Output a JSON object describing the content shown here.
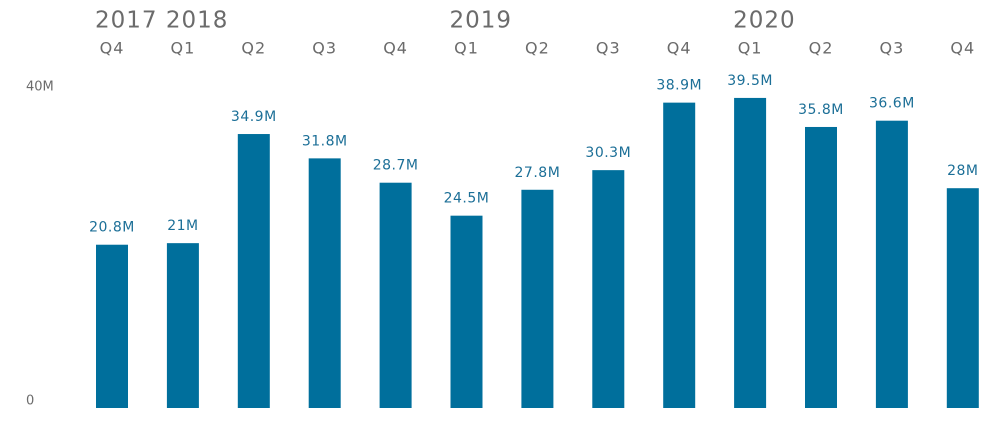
{
  "chart_data": {
    "type": "bar",
    "years": [
      "2017",
      "2018",
      null,
      null,
      null,
      "2019",
      null,
      null,
      null,
      "2020",
      null,
      null,
      null
    ],
    "categories": [
      "Q4",
      "Q1",
      "Q2",
      "Q3",
      "Q4",
      "Q1",
      "Q2",
      "Q3",
      "Q4",
      "Q1",
      "Q2",
      "Q3",
      "Q4"
    ],
    "values": [
      20800000,
      21000000,
      34900000,
      31800000,
      28700000,
      24500000,
      27800000,
      30300000,
      38900000,
      39500000,
      35800000,
      36600000,
      28000000
    ],
    "value_labels": [
      "20.8M",
      "21M",
      "34.9M",
      "31.8M",
      "28.7M",
      "24.5M",
      "27.8M",
      "30.3M",
      "38.9M",
      "39.5M",
      "35.8M",
      "36.6M",
      "28M"
    ],
    "color": "#006f9c",
    "ylim": [
      0,
      40000000
    ],
    "yticks": [
      0,
      {
        "value": 40000000,
        "label": "40M"
      }
    ],
    "grid": false
  }
}
